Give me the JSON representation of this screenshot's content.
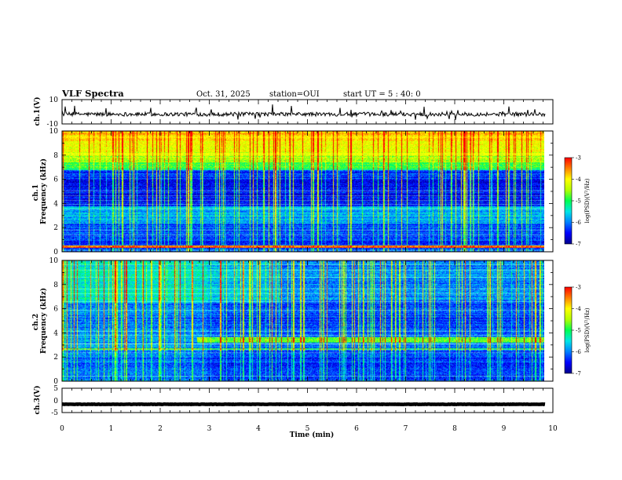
{
  "header": {
    "title": "VLF Spectra",
    "date": "Oct. 31, 2025",
    "station": "station=OUI",
    "start": "start UT =  5 : 40: 0"
  },
  "colors": {
    "trace": "#000000",
    "colormap": [
      "#00008c",
      "#0000ff",
      "#0080ff",
      "#00e6e6",
      "#00ff50",
      "#b4ff00",
      "#ffff00",
      "#ff8000",
      "#ff0000",
      "#d2d2d2"
    ]
  },
  "chart_data": [
    {
      "type": "line",
      "ylabel": "ch.1(V)",
      "ylim": [
        -10,
        10
      ],
      "yticks": [
        "10",
        "-10"
      ],
      "xlim": [
        0,
        10
      ],
      "series": [
        {
          "description": "broadband waveform around -2 V with sparse impulsive spikes",
          "level": -2
        }
      ]
    },
    {
      "type": "heatmap",
      "ylabel": "ch.1\nFrequency (kHz)",
      "ylabel_parts": [
        "ch.1",
        "Frequency (kHz)"
      ],
      "ylim": [
        0,
        10
      ],
      "yticks": [
        "10",
        "8",
        "6",
        "4",
        "2",
        "0"
      ],
      "xlim": [
        0,
        9.85
      ],
      "colorbar": {
        "label": "log(PSD)(V²/Hz)",
        "range": [
          -7,
          -3
        ],
        "ticks": [
          "-3",
          "-4",
          "-5",
          "-6",
          "-7"
        ]
      },
      "description": "noise bands: strong 8-10 kHz, quiet 4-7 kHz, sferic streaks throughout, red line near 0.5 kHz"
    },
    {
      "type": "heatmap",
      "ylabel_parts": [
        "ch.2",
        "Frequency (kHz)"
      ],
      "ylim": [
        0,
        10
      ],
      "yticks": [
        "10",
        "8",
        "6",
        "4",
        "2",
        "0"
      ],
      "xlim": [
        0,
        9.85
      ],
      "colorbar": {
        "label": "log(PSD)(V²/Hz)",
        "range": [
          -7,
          -3
        ],
        "ticks": [
          "-3",
          "-4",
          "-5",
          "-6",
          "-7"
        ]
      },
      "description": "many sferic streaks, bright band near 3.4 kHz after ~2.8 min"
    },
    {
      "type": "line",
      "ylabel": "ch.3(V)",
      "ylim": [
        -5,
        5
      ],
      "yticks": [
        "5",
        "0",
        "-5"
      ],
      "xlim": [
        0,
        10
      ],
      "series": [
        {
          "description": "flat trace near -1.6 V",
          "level": -1.6
        }
      ]
    }
  ],
  "xaxis": {
    "label": "Time (min)",
    "ticks": [
      "0",
      "1",
      "2",
      "3",
      "4",
      "5",
      "6",
      "7",
      "8",
      "9",
      "10"
    ],
    "range": [
      0,
      10
    ]
  }
}
